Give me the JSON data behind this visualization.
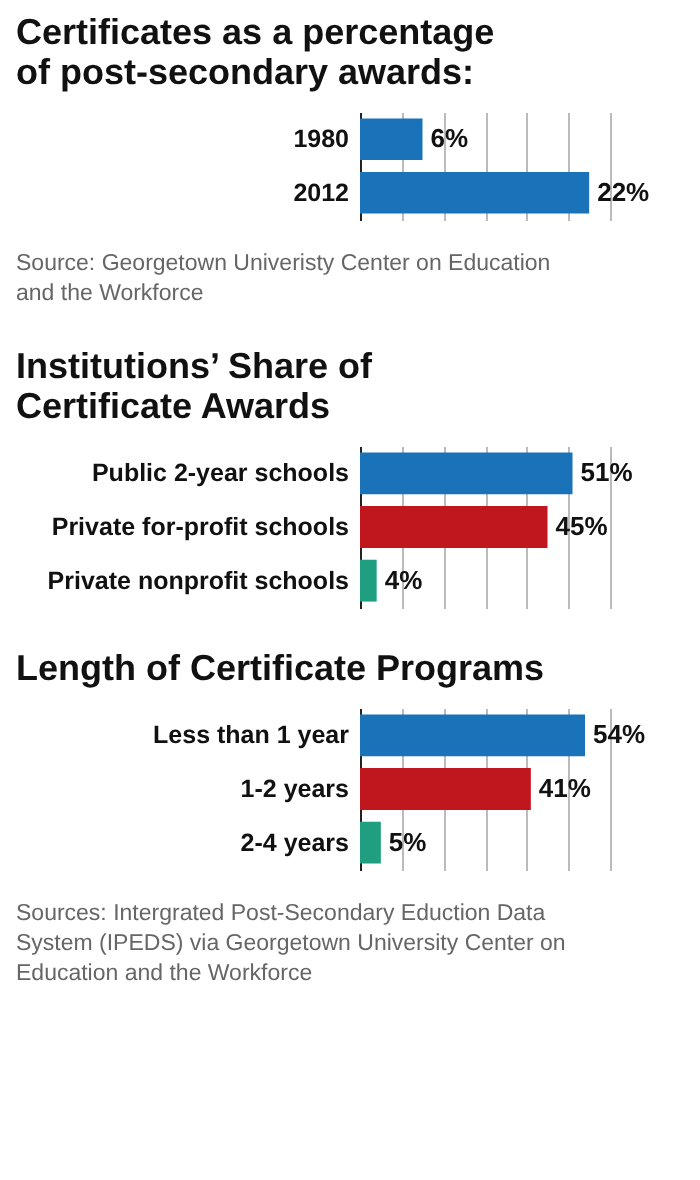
{
  "chart_data": [
    {
      "type": "bar",
      "orientation": "horizontal",
      "title": "Certificates as a percentage of post-secondary awards:",
      "categories": [
        "1980",
        "2012"
      ],
      "values": [
        6,
        22
      ],
      "colors": [
        "#1a72b8",
        "#1a72b8"
      ],
      "value_labels": [
        "6%",
        "22%"
      ],
      "xlim": [
        0,
        24
      ],
      "xticks": [
        {
          "value": 0,
          "label": null
        },
        {
          "value": 4,
          "label": null
        },
        {
          "value": 8,
          "label": null
        },
        {
          "value": 12,
          "label": null
        },
        {
          "value": 16,
          "label": null
        },
        {
          "value": 20,
          "label": null
        },
        {
          "value": 24,
          "label": null
        }
      ],
      "grid": "x",
      "tick_labels": "y",
      "legend": false,
      "annotations": [
        "Source: Georgetown Univeristy Center on Education and the Workforce"
      ]
    },
    {
      "type": "bar",
      "orientation": "horizontal",
      "title": "Institutions’ Share of Certificate Awards",
      "categories": [
        "Public 2-year schools",
        "Private for-profit schools",
        "Private nonprofit schools"
      ],
      "values": [
        51,
        45,
        4
      ],
      "colors": [
        "#1a72b8",
        "#c0161e",
        "#1f9e80"
      ],
      "value_labels": [
        "51%",
        "45%",
        "4%"
      ],
      "xlim": [
        0,
        60
      ],
      "xticks": [
        {
          "value": 0,
          "label": null
        },
        {
          "value": 10,
          "label": null
        },
        {
          "value": 20,
          "label": null
        },
        {
          "value": 30,
          "label": null
        },
        {
          "value": 40,
          "label": null
        },
        {
          "value": 50,
          "label": null
        },
        {
          "value": 60,
          "label": null
        }
      ],
      "grid": "x",
      "tick_labels": "y",
      "legend": false
    },
    {
      "type": "bar",
      "orientation": "horizontal",
      "title": "Length of Certificate Programs",
      "categories": [
        "Less than 1 year",
        "1-2 years",
        "2-4 years"
      ],
      "values": [
        54,
        41,
        5
      ],
      "colors": [
        "#1a72b8",
        "#c0161e",
        "#1f9e80"
      ],
      "value_labels": [
        "54%",
        "41%",
        "5%"
      ],
      "xlim": [
        0,
        60
      ],
      "xticks": [
        {
          "value": 0,
          "label": null
        },
        {
          "value": 10,
          "label": null
        },
        {
          "value": 20,
          "label": null
        },
        {
          "value": 30,
          "label": null
        },
        {
          "value": 40,
          "label": null
        },
        {
          "value": 50,
          "label": null
        },
        {
          "value": 60,
          "label": null
        }
      ],
      "grid": "x",
      "tick_labels": "y",
      "legend": false,
      "annotations": [
        "Sources: Intergrated Post-Secondary Eduction Data System (IPEDS) via Georgetown University Center on Education and the Workforce"
      ]
    }
  ]
}
